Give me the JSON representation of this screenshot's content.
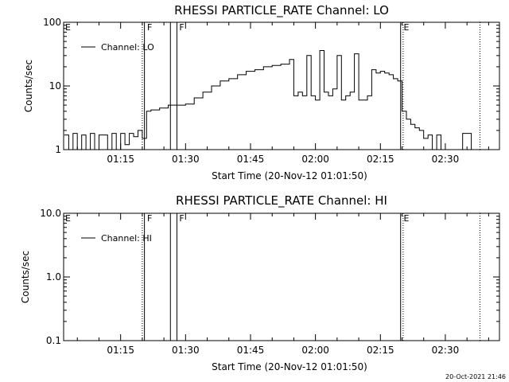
{
  "chart_data": [
    {
      "type": "line",
      "title": "RHESSI PARTICLE_RATE Channel: LO",
      "xlabel": "Start Time (20-Nov-12 01:01:50)",
      "ylabel": "Counts/sec",
      "yscale": "log",
      "ylim": [
        1,
        100
      ],
      "yticks": [
        1,
        10,
        100
      ],
      "ytick_labels": [
        "1",
        "10",
        "100"
      ],
      "xlim": [
        "01:01:50",
        "02:42:30"
      ],
      "xtick_labels": [
        "01:15",
        "01:30",
        "01:45",
        "02:00",
        "02:15",
        "02:30"
      ],
      "legend": {
        "label": "Channel: LO",
        "placement": "top-left"
      },
      "series": [
        {
          "name": "Channel: LO",
          "x": [
            "01:02",
            "01:03",
            "01:04",
            "01:05",
            "01:06",
            "01:07",
            "01:08",
            "01:09",
            "01:10",
            "01:11",
            "01:12",
            "01:13",
            "01:14",
            "01:15",
            "01:16",
            "01:17",
            "01:18",
            "01:19",
            "01:20",
            "01:21",
            "01:22",
            "01:24",
            "01:26",
            "01:28",
            "01:30",
            "01:32",
            "01:34",
            "01:36",
            "01:38",
            "01:40",
            "01:42",
            "01:44",
            "01:46",
            "01:48",
            "01:50",
            "01:52",
            "01:54",
            "01:55",
            "01:56",
            "01:57",
            "01:58",
            "01:59",
            "02:00",
            "02:01",
            "02:02",
            "02:03",
            "02:04",
            "02:05",
            "02:06",
            "02:07",
            "02:08",
            "02:09",
            "02:10",
            "02:11",
            "02:12",
            "02:13",
            "02:14",
            "02:15",
            "02:16",
            "02:17",
            "02:18",
            "02:19",
            "02:20",
            "02:21",
            "02:22",
            "02:23",
            "02:24",
            "02:25",
            "02:26",
            "02:27",
            "02:28",
            "02:29",
            "02:30",
            "02:32",
            "02:34",
            "02:36"
          ],
          "y": [
            1.7,
            1,
            1.8,
            1,
            1.7,
            1,
            1.8,
            1,
            1.7,
            1.7,
            1,
            1.8,
            1,
            1.8,
            1.2,
            1.8,
            1.6,
            2,
            1.5,
            4,
            4.2,
            4.5,
            5,
            5,
            5.2,
            6.5,
            8,
            10,
            12,
            13,
            15,
            17,
            18,
            20,
            21,
            22,
            26,
            7,
            8,
            7,
            30,
            7,
            6,
            36,
            8,
            7,
            9,
            30,
            6,
            7,
            8,
            32,
            6,
            6,
            7,
            18,
            16,
            17,
            16,
            15,
            13,
            12,
            4,
            3,
            2.5,
            2.2,
            2,
            1.5,
            1.7,
            1,
            1.7,
            1,
            1,
            1,
            1.8,
            1
          ]
        }
      ],
      "flags": [
        {
          "label": "E",
          "time": "01:01:50"
        },
        {
          "label": "F",
          "time": "01:20:45"
        },
        {
          "label": "F",
          "time": "01:28:10"
        },
        {
          "label": "E",
          "time": "02:20:00"
        }
      ],
      "solid_markers": [
        "01:20:30",
        "01:26:30",
        "01:28:00",
        "02:19:40"
      ],
      "dotted_markers": [
        "01:20:00",
        "02:20:15",
        "02:38:00"
      ]
    },
    {
      "type": "line",
      "title": "RHESSI PARTICLE_RATE Channel: HI",
      "xlabel": "Start Time (20-Nov-12 01:01:50)",
      "ylabel": "Counts/sec",
      "yscale": "log",
      "ylim": [
        0.1,
        10
      ],
      "yticks": [
        0.1,
        1,
        10
      ],
      "ytick_labels": [
        "0.1",
        "1.0",
        "10.0"
      ],
      "xlim": [
        "01:01:50",
        "02:42:30"
      ],
      "xtick_labels": [
        "01:15",
        "01:30",
        "01:45",
        "02:00",
        "02:15",
        "02:30"
      ],
      "legend": {
        "label": "Channel: HI",
        "placement": "top-left"
      },
      "series": [
        {
          "name": "Channel: HI",
          "x": [],
          "y": []
        }
      ],
      "flags": [
        {
          "label": "E",
          "time": "01:01:50"
        },
        {
          "label": "F",
          "time": "01:20:45"
        },
        {
          "label": "F",
          "time": "01:28:10"
        },
        {
          "label": "E",
          "time": "02:20:00"
        }
      ],
      "solid_markers": [
        "01:20:30",
        "01:26:30",
        "01:28:00",
        "02:19:40"
      ],
      "dotted_markers": [
        "01:20:00",
        "02:20:15",
        "02:38:00"
      ]
    }
  ],
  "footer": {
    "timestamp": "20-Oct-2021 21:46"
  }
}
